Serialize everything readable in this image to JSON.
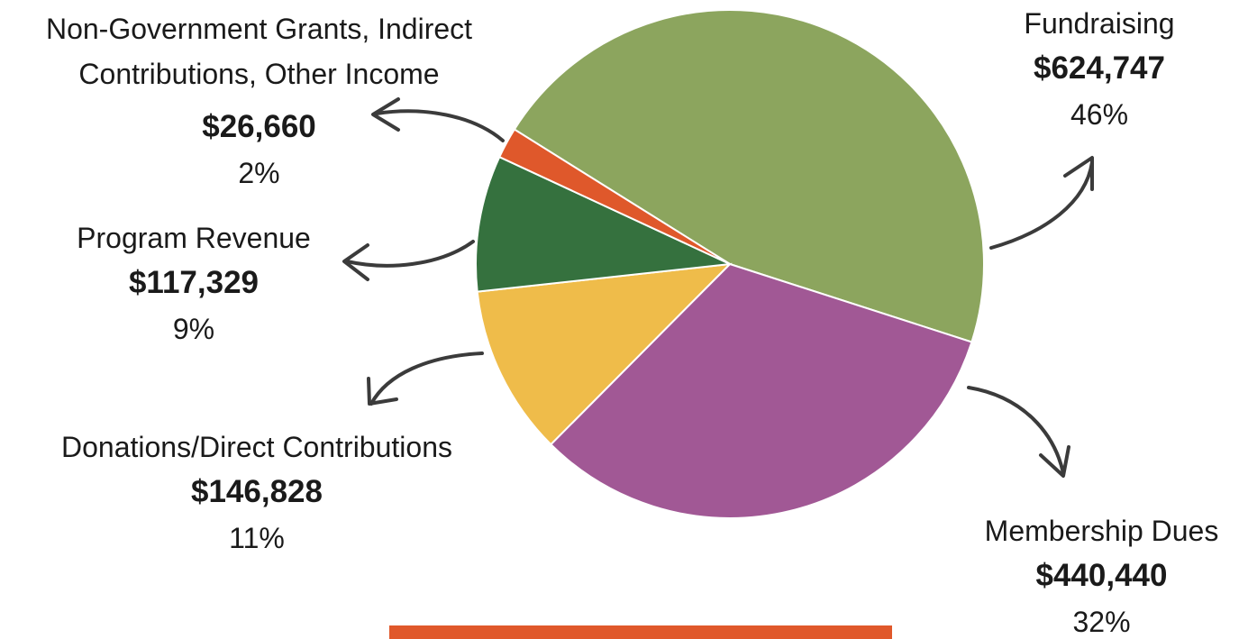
{
  "chart_data": {
    "type": "pie",
    "title": "",
    "series": [
      {
        "name": "Fundraising",
        "value": 624747,
        "amount_label": "$624,747",
        "percent_label": "46%",
        "color": "#8ca55e"
      },
      {
        "name": "Membership Dues",
        "value": 440440,
        "amount_label": "$440,440",
        "percent_label": "32%",
        "color": "#a15895"
      },
      {
        "name": "Donations/Direct Contributions",
        "value": 146828,
        "amount_label": "$146,828",
        "percent_label": "11%",
        "color": "#efbc4a"
      },
      {
        "name": "Program Revenue",
        "value": 117329,
        "amount_label": "$117,329",
        "percent_label": "9%",
        "color": "#35713e"
      },
      {
        "name": "Non-Government Grants, Indirect\nContributions, Other Income",
        "value": 26660,
        "amount_label": "$26,660",
        "percent_label": "2%",
        "color": "#df582b"
      }
    ],
    "legend": "none"
  },
  "colors": {
    "arrow": "#3b3b3b",
    "accent_bar": "#e0582b"
  }
}
